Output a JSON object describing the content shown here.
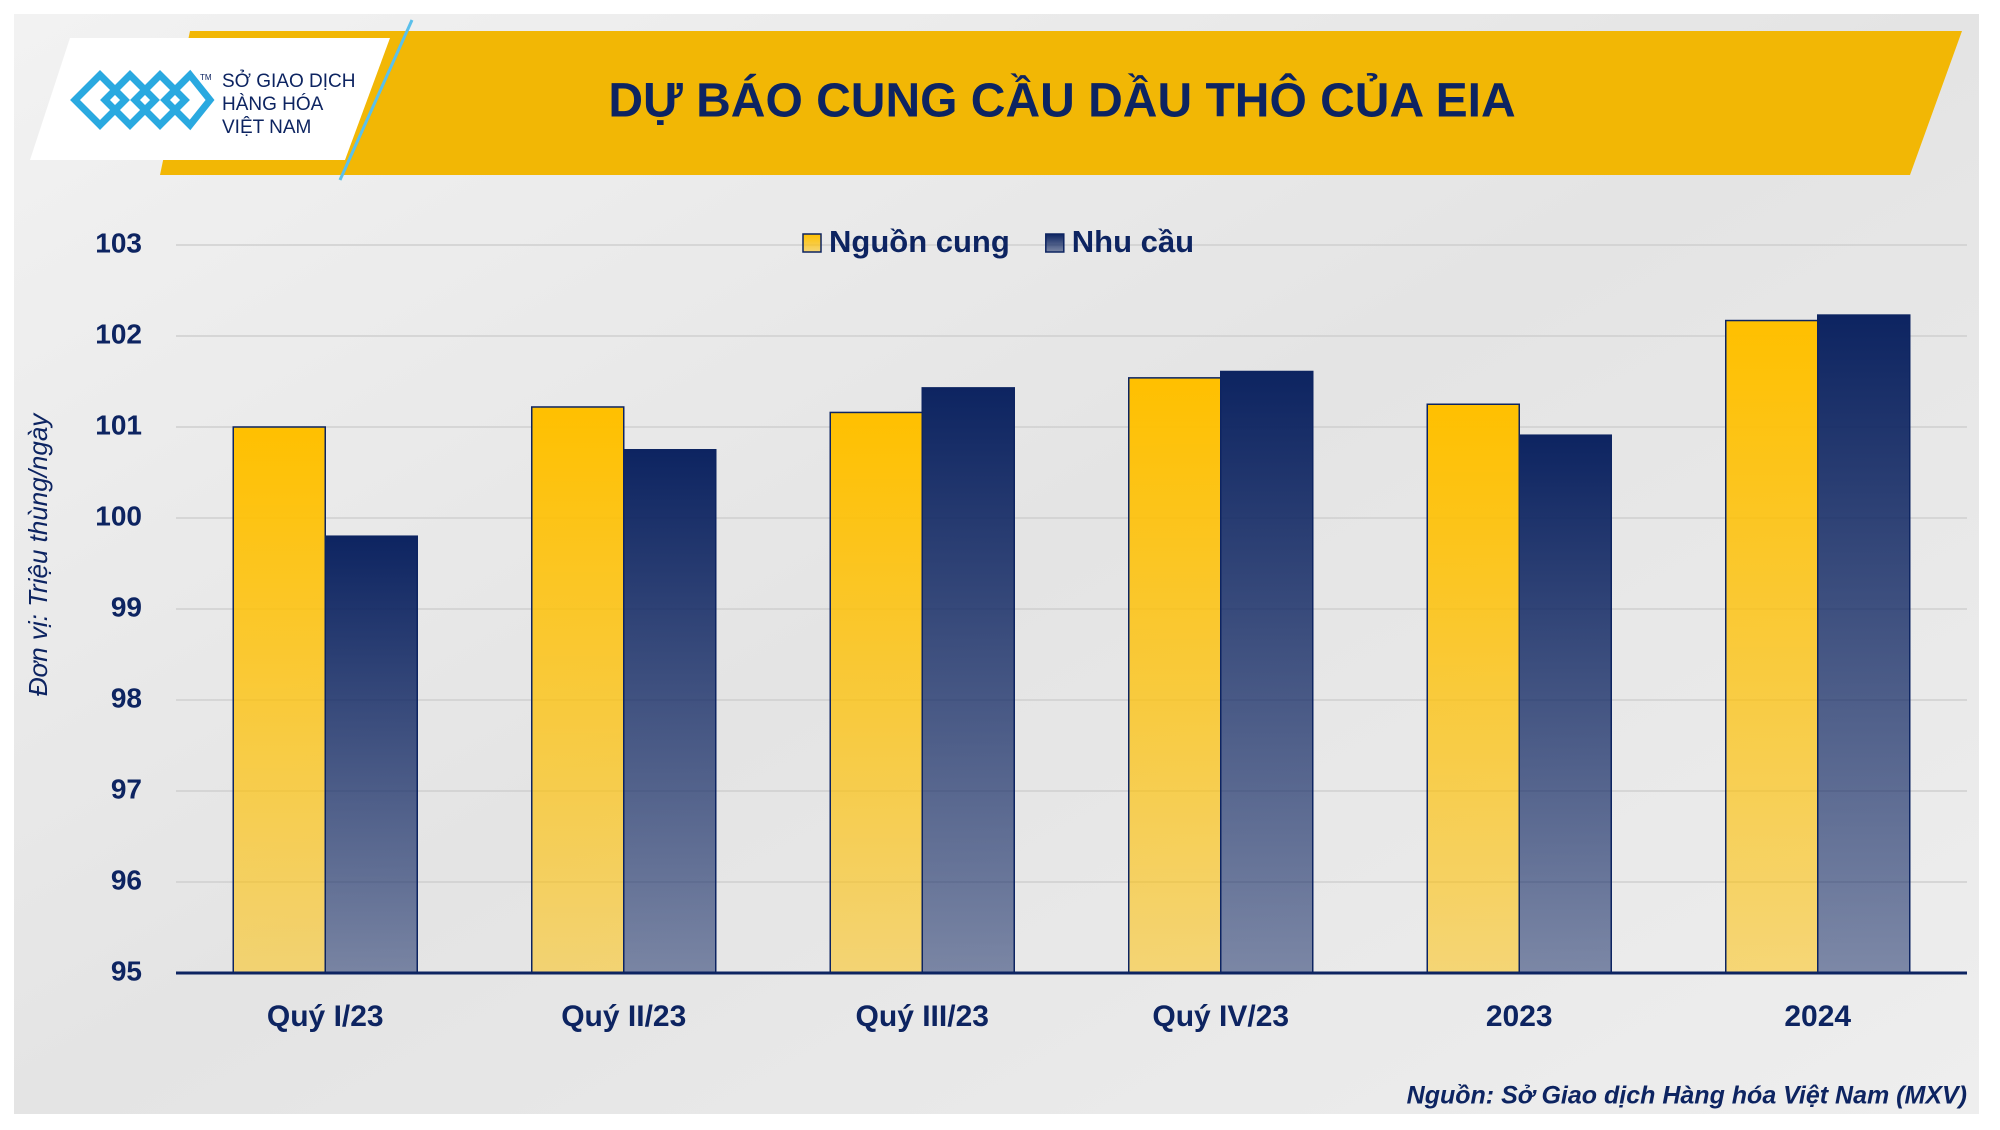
{
  "logo": {
    "lines": [
      "SỞ GIAO DỊCH",
      "HÀNG HÓA",
      "VIỆT NAM"
    ],
    "mark": "TM"
  },
  "source": "Nguồn: Sở Giao dịch Hàng hóa Việt Nam (MXV)",
  "chart_data": {
    "type": "bar",
    "title": "DỰ BÁO CUNG CẦU DẦU THÔ CỦA EIA",
    "y_label": "Đơn vị: Triệu thùng/ngày",
    "categories": [
      "Quý I/23",
      "Quý II/23",
      "Quý III/23",
      "Quý IV/23",
      "2023",
      "2024"
    ],
    "series": [
      {
        "name": "Nguồn cung",
        "color": "#ffc000",
        "values": [
          101.0,
          101.22,
          101.16,
          101.54,
          101.25,
          102.17
        ]
      },
      {
        "name": "Nhu cầu",
        "color": "#0d2461",
        "values": [
          99.8,
          100.75,
          101.43,
          101.61,
          100.91,
          102.23
        ]
      }
    ],
    "ylim": [
      95,
      103
    ],
    "yticks": [
      95,
      96,
      97,
      98,
      99,
      100,
      101,
      102,
      103
    ],
    "grid": true,
    "legend": "top"
  }
}
